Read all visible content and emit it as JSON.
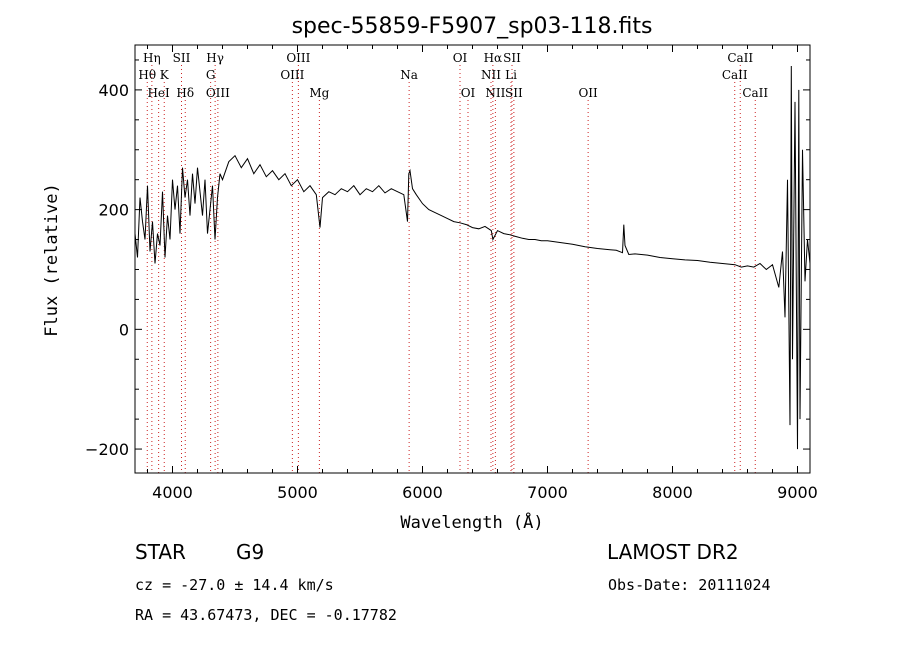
{
  "chart_data": {
    "type": "line",
    "title": "spec-55859-F5907_sp03-118.fits",
    "xlabel": "Wavelength (Å)",
    "ylabel": "Flux (relative)",
    "xlim": [
      3700,
      9100
    ],
    "ylim": [
      -240,
      475
    ],
    "xticks": [
      4000,
      5000,
      6000,
      7000,
      8000,
      9000
    ],
    "yticks": [
      -200,
      0,
      200,
      400
    ],
    "grid": false,
    "legend": "none",
    "line_color": "#000000",
    "marker_color": "#cc2222",
    "series": [
      {
        "x": [
          3700,
          3720,
          3740,
          3760,
          3780,
          3800,
          3820,
          3840,
          3860,
          3880,
          3900,
          3920,
          3940,
          3960,
          3980,
          4000,
          4020,
          4040,
          4060,
          4080,
          4100,
          4120,
          4140,
          4160,
          4180,
          4200,
          4220,
          4240,
          4260,
          4280,
          4300,
          4320,
          4340,
          4360,
          4380,
          4400,
          4450,
          4500,
          4550,
          4600,
          4650,
          4700,
          4750,
          4800,
          4850,
          4900,
          4950,
          5000,
          5050,
          5100,
          5150,
          5180,
          5200,
          5250,
          5300,
          5350,
          5400,
          5450,
          5500,
          5550,
          5600,
          5650,
          5700,
          5750,
          5800,
          5850,
          5880,
          5890,
          5900,
          5920,
          5950,
          6000,
          6050,
          6100,
          6150,
          6200,
          6250,
          6300,
          6350,
          6400,
          6450,
          6500,
          6550,
          6563,
          6600,
          6650,
          6700,
          6750,
          6800,
          6850,
          6900,
          6950,
          7000,
          7100,
          7200,
          7300,
          7400,
          7500,
          7550,
          7600,
          7610,
          7620,
          7650,
          7700,
          7800,
          7900,
          8000,
          8100,
          8200,
          8300,
          8400,
          8500,
          8550,
          8600,
          8650,
          8700,
          8750,
          8800,
          8850,
          8880,
          8900,
          8920,
          8940,
          8950,
          8960,
          8980,
          9000,
          9010,
          9020,
          9040,
          9060,
          9080,
          9100
        ],
        "y": [
          160,
          120,
          220,
          180,
          150,
          240,
          130,
          180,
          110,
          160,
          140,
          230,
          120,
          190,
          150,
          250,
          200,
          240,
          160,
          270,
          220,
          250,
          190,
          260,
          210,
          270,
          230,
          190,
          250,
          160,
          200,
          240,
          150,
          220,
          260,
          250,
          280,
          290,
          270,
          285,
          260,
          275,
          255,
          265,
          250,
          260,
          240,
          250,
          230,
          240,
          225,
          170,
          220,
          230,
          225,
          235,
          230,
          240,
          225,
          235,
          230,
          240,
          228,
          235,
          230,
          225,
          180,
          260,
          265,
          235,
          225,
          210,
          200,
          195,
          190,
          185,
          180,
          178,
          175,
          170,
          168,
          172,
          165,
          150,
          165,
          160,
          158,
          155,
          152,
          150,
          150,
          148,
          148,
          145,
          142,
          138,
          135,
          133,
          132,
          128,
          175,
          140,
          125,
          126,
          124,
          120,
          118,
          116,
          115,
          112,
          110,
          108,
          104,
          106,
          104,
          110,
          100,
          108,
          70,
          130,
          20,
          250,
          -160,
          440,
          -50,
          380,
          -200,
          400,
          -150,
          300,
          80,
          150,
          110
        ]
      }
    ],
    "line_markers": [
      {
        "label": "Hη",
        "x": 3835,
        "row": 0
      },
      {
        "label": "Hθ",
        "x": 3798,
        "row": 1
      },
      {
        "label": "HeI",
        "x": 3889,
        "row": 2
      },
      {
        "label": "K",
        "x": 3934,
        "row": 1
      },
      {
        "label": "SII",
        "x": 4072,
        "row": 0
      },
      {
        "label": "Hδ",
        "x": 4102,
        "row": 2
      },
      {
        "label": "Hγ",
        "x": 4341,
        "row": 0
      },
      {
        "label": "G",
        "x": 4305,
        "row": 1
      },
      {
        "label": "OIII",
        "x": 4363,
        "row": 2
      },
      {
        "label": "OIII",
        "x": 5007,
        "row": 0
      },
      {
        "label": "OIII",
        "x": 4959,
        "row": 1
      },
      {
        "label": "Mg",
        "x": 5175,
        "row": 2
      },
      {
        "label": "Na",
        "x": 5893,
        "row": 1
      },
      {
        "label": "OI",
        "x": 6300,
        "row": 0
      },
      {
        "label": "OI",
        "x": 6364,
        "row": 2
      },
      {
        "label": "Hα",
        "x": 6563,
        "row": 0
      },
      {
        "label": "SII",
        "x": 6716,
        "row": 0
      },
      {
        "label": "NII",
        "x": 6548,
        "row": 1
      },
      {
        "label": "Li",
        "x": 6708,
        "row": 1
      },
      {
        "label": "NII",
        "x": 6583,
        "row": 2
      },
      {
        "label": "SII",
        "x": 6731,
        "row": 2
      },
      {
        "label": "OII",
        "x": 7325,
        "row": 2
      },
      {
        "label": "CaII",
        "x": 8542,
        "row": 0
      },
      {
        "label": "CaII",
        "x": 8498,
        "row": 1
      },
      {
        "label": "CaII",
        "x": 8662,
        "row": 2
      }
    ]
  },
  "info": {
    "object_class": "STAR",
    "subclass": "G9",
    "survey": "LAMOST DR2",
    "redshift": "cz = -27.0 ± 14.4 km/s",
    "obs_date": "Obs-Date: 20111024",
    "coords": "RA =  43.67473, DEC =  -0.17782"
  }
}
